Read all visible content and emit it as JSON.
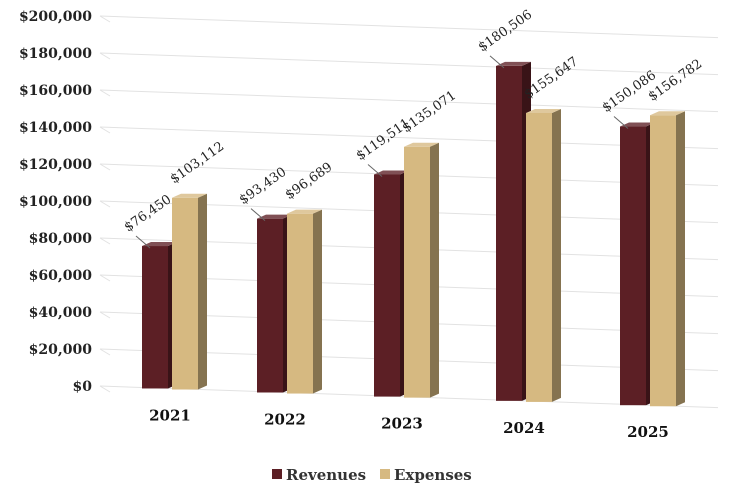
{
  "chart_data": {
    "type": "bar",
    "title": "",
    "xlabel": "",
    "ylabel": "",
    "categories": [
      "2021",
      "2022",
      "2023",
      "2024",
      "2025"
    ],
    "series": [
      {
        "name": "Revenues",
        "color": "#5c1f25",
        "values": [
          76450,
          93430,
          119511,
          180506,
          150086
        ],
        "labels": [
          "$76,450",
          "$93,430",
          "$119,511",
          "$180,506",
          "$150,086"
        ]
      },
      {
        "name": "Expenses",
        "color": "#d6b981",
        "values": [
          103112,
          96689,
          135071,
          155647,
          156782
        ],
        "labels": [
          "$103,112",
          "$96,689",
          "$135,071",
          "$155,647",
          "$156,782"
        ]
      }
    ],
    "ylim": [
      0,
      200000
    ],
    "yticks": [
      "$0",
      "$20,000",
      "$40,000",
      "$60,000",
      "$80,000",
      "$100,000",
      "$120,000",
      "$140,000",
      "$160,000",
      "$180,000",
      "$200,000"
    ],
    "grid": true,
    "legend_position": "bottom",
    "style": "3d-clustered-column"
  }
}
